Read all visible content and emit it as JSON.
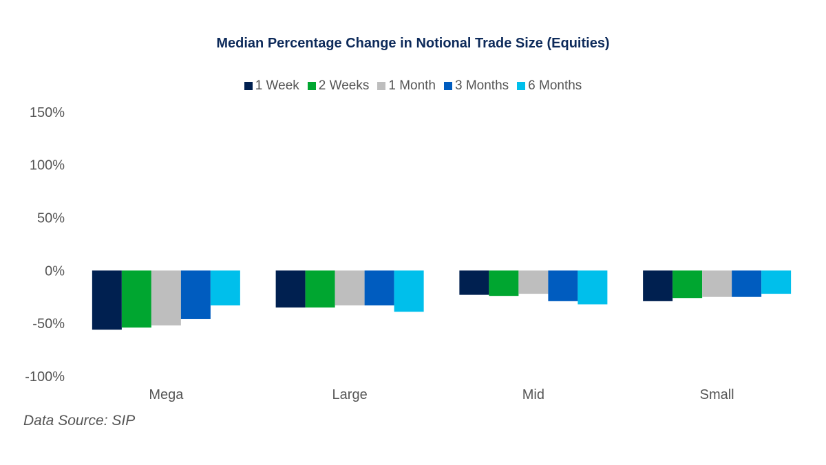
{
  "chart_data": {
    "type": "bar",
    "title": "Median Percentage Change in Notional Trade Size (Equities)",
    "categories": [
      "Mega",
      "Large",
      "Mid",
      "Small"
    ],
    "series": [
      {
        "name": "1 Week",
        "color": "#002050",
        "values": [
          -56,
          -35,
          -23,
          -29
        ]
      },
      {
        "name": "2 Weeks",
        "color": "#00a630",
        "values": [
          -54,
          -35,
          -24,
          -26
        ]
      },
      {
        "name": "1 Month",
        "color": "#bebebe",
        "values": [
          -52,
          -33,
          -22,
          -25
        ]
      },
      {
        "name": "3 Months",
        "color": "#005cbf",
        "values": [
          -46,
          -33,
          -29,
          -25
        ]
      },
      {
        "name": "6 Months",
        "color": "#00bfeb",
        "values": [
          -33,
          -39,
          -32,
          -22
        ]
      }
    ],
    "yticks": [
      150,
      100,
      50,
      0,
      -50,
      -100
    ],
    "ytick_labels": [
      "150%",
      "100%",
      "50%",
      "0%",
      "-50%",
      "-100%"
    ],
    "ylim": [
      -100,
      150
    ],
    "xlabel": "",
    "ylabel": "",
    "legend": "top-center",
    "grid": false
  },
  "source": "Data Source: SIP"
}
